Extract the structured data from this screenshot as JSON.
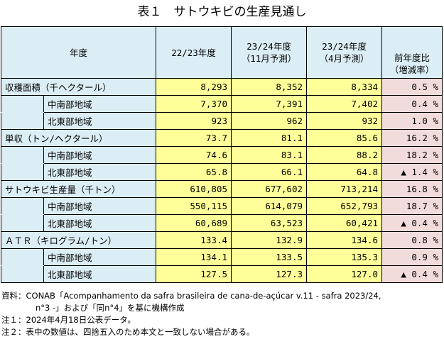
{
  "title": "表１　サトウキビの生産見通し",
  "header": {
    "year": "年度",
    "col1": "22/23年度",
    "col2_line1": "23/24年度",
    "col2_line2": "（11月予測）",
    "col3_line1": "23/24年度",
    "col3_line2": "（4月予測）",
    "col4_line1": "前年度比",
    "col4_line2": "（増減率）"
  },
  "groups": [
    {
      "label": "収穫面積（千ヘクタール）",
      "total": [
        "8,293",
        "8,352",
        "8,334",
        "0.5 %"
      ],
      "rows": [
        {
          "label": "中南部地域",
          "values": [
            "7,370",
            "7,391",
            "7,402",
            "0.4 %"
          ]
        },
        {
          "label": "北東部地域",
          "values": [
            "923",
            "962",
            "932",
            "1.0 %"
          ]
        }
      ]
    },
    {
      "label": "単収（トン/ヘクタール）",
      "total": [
        "73.7",
        "81.1",
        "85.6",
        "16.2 %"
      ],
      "rows": [
        {
          "label": "中南部地域",
          "values": [
            "74.6",
            "83.1",
            "88.2",
            "18.2 %"
          ]
        },
        {
          "label": "北東部地域",
          "values": [
            "65.8",
            "66.1",
            "64.8",
            "▲ 1.4 %"
          ]
        }
      ]
    },
    {
      "label": "サトウキビ生産量（千トン）",
      "total": [
        "610,805",
        "677,602",
        "713,214",
        "16.8 %"
      ],
      "rows": [
        {
          "label": "中南部地域",
          "values": [
            "550,115",
            "614,079",
            "652,793",
            "18.7 %"
          ]
        },
        {
          "label": "北東部地域",
          "values": [
            "60,689",
            "63,523",
            "60,421",
            "▲ 0.4 %"
          ]
        }
      ]
    },
    {
      "label": "ＡＴＲ（キログラム/トン）",
      "total": [
        "133.4",
        "132.9",
        "134.6",
        "0.8 %"
      ],
      "rows": [
        {
          "label": "中南部地域",
          "values": [
            "134.1",
            "133.5",
            "135.3",
            "0.9 %"
          ]
        },
        {
          "label": "北東部地域",
          "values": [
            "127.5",
            "127.3",
            "127.0",
            "▲ 0.4 %"
          ]
        }
      ]
    }
  ],
  "notes": {
    "source_line1": "資料：CONAB「Acompanhamento da safra brasileira de cana-de-açúcar v.11 - safra 2023/24,",
    "source_line2": "n°3 -」および「同n°4」を基に機構作成",
    "note1": "注１：2024年4月18日公表データ。",
    "note2": "注２：表中の数値は、四捨五入のため本文と一致しない場合がある。"
  },
  "colors": {
    "header_bg": "#dbeef5",
    "value_bg": "#ffff99",
    "change_bg": "#f2dcdb"
  }
}
